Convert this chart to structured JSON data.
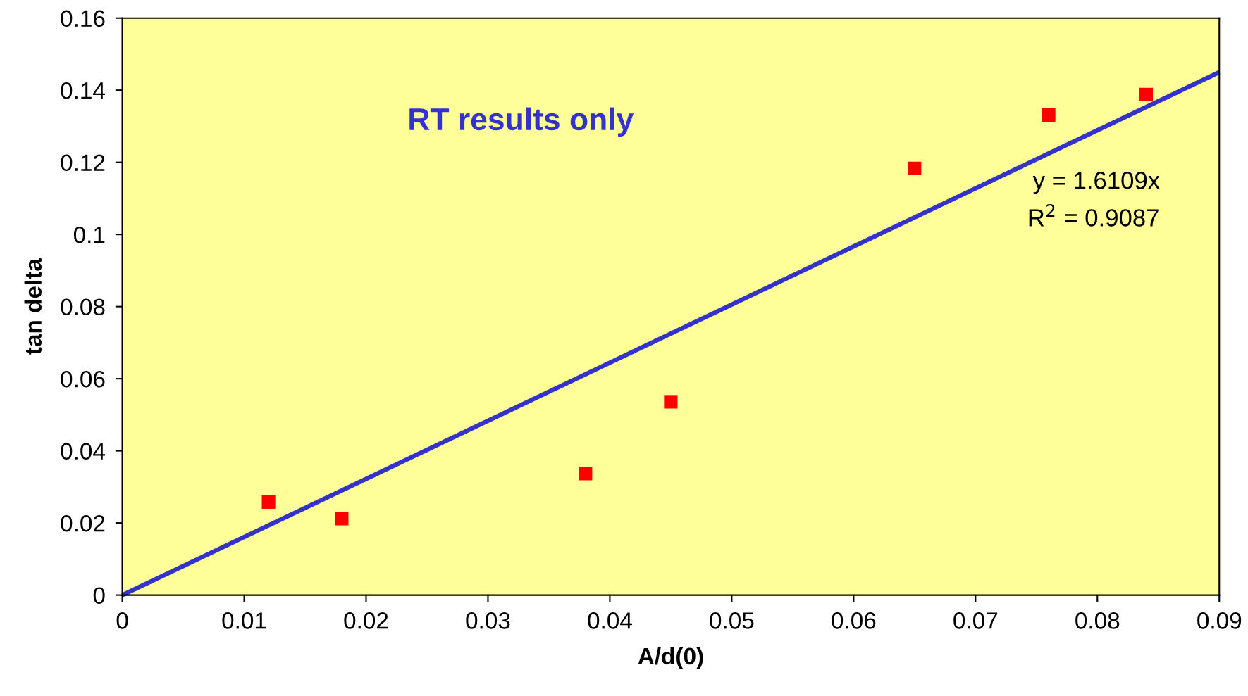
{
  "chart_data": {
    "type": "scatter",
    "xlabel": "A/d(0)",
    "ylabel": "tan delta",
    "xlim": [
      0,
      0.09
    ],
    "xticks": [
      0,
      0.01,
      0.02,
      0.03,
      0.04,
      0.05,
      0.06,
      0.07,
      0.08,
      0.09
    ],
    "ylim": [
      0,
      0.16
    ],
    "yticks": [
      0,
      0.02,
      0.04,
      0.06,
      0.08,
      0.1,
      0.12,
      0.14,
      0.16
    ],
    "grid": false,
    "legend": false,
    "series": [
      {
        "color": "#ff0000",
        "marker": "square",
        "x": [
          0.012,
          0.018,
          0.038,
          0.045,
          0.065,
          0.076,
          0.084
        ],
        "values": [
          0.0258,
          0.0212,
          0.0337,
          0.0536,
          0.1183,
          0.1331,
          0.1388
        ]
      },
      {
        "type": "line",
        "color": "#3333cc",
        "marker": "none",
        "x": [
          0,
          0.09
        ],
        "values": [
          0,
          0.145
        ]
      }
    ],
    "annotations": [
      "RT results only",
      "y = 1.6109x",
      "R$^{2}$ = 0.9087"
    ]
  }
}
